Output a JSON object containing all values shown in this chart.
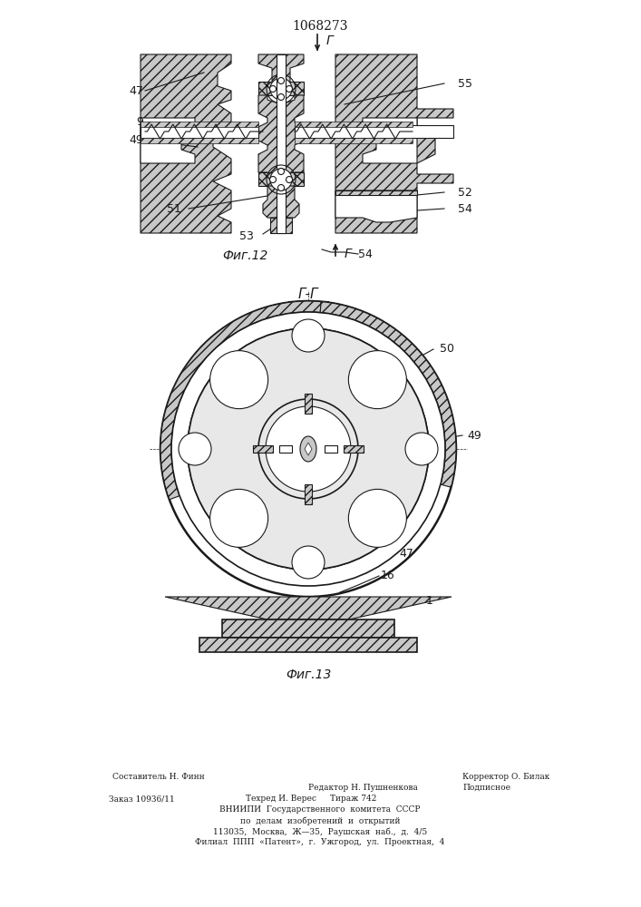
{
  "title": "1068273",
  "fig12_label": "Фиг.12",
  "fig13_label": "Фиг.13",
  "section_label": "Г-Г",
  "footer_line1_left": "Редактор Н. Пушненкова",
  "footer_line1_center": "Составитель Н. Финн",
  "footer_line1_right": "Корректор О. Билак",
  "footer_line2_left": "Заказ 10936/11",
  "footer_line2_center": "Техред И. Верес",
  "footer_line2_right": "Тираж 742",
  "footer_line2_far_right": "Подписное",
  "footer_line3": "ВНИИПИ  Государственного  комитета  СССР",
  "footer_line4": "по  делам  изобретений  и  открытий",
  "footer_line5": "113035,  Москва,  Ж—35,  Раушская  наб.,  д.  4/5",
  "footer_line6": "Филиал  ППП  «Патент»,  г.  Ужгород,  ул.  Проектная,  4",
  "line_color": "#1a1a1a"
}
